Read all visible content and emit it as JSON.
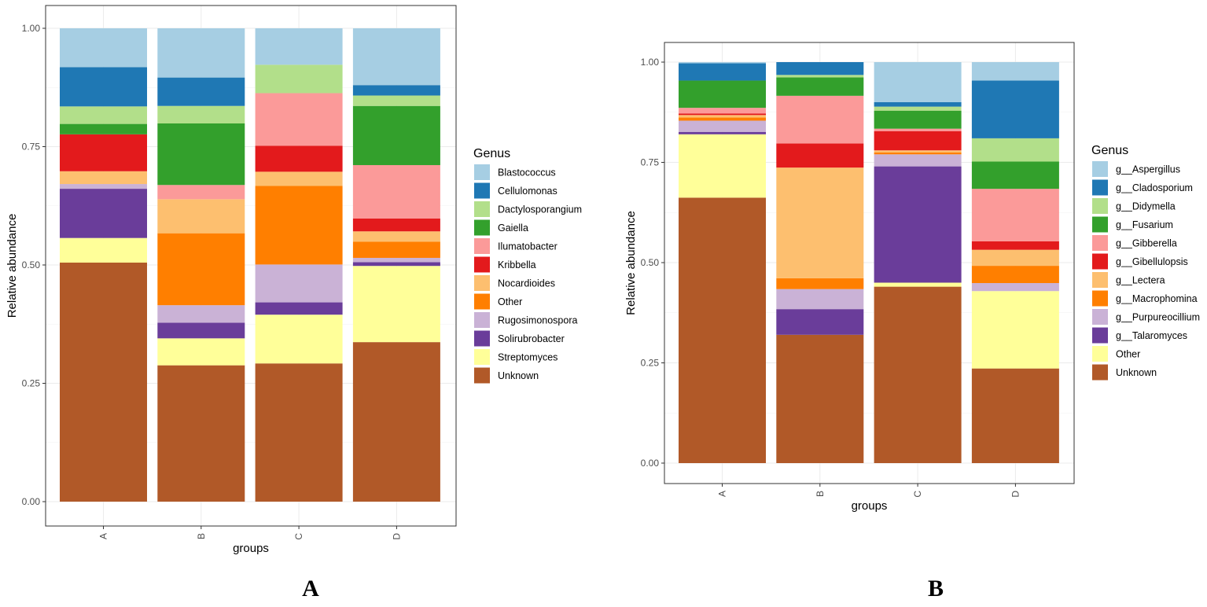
{
  "chart_data": [
    {
      "type": "bar",
      "stacked": true,
      "panel_label": "A",
      "xlabel": "groups",
      "ylabel": "Relative abundance",
      "ylim": [
        0,
        1
      ],
      "yticks": [
        "0.00",
        "0.25",
        "0.50",
        "0.75",
        "1.00"
      ],
      "categories": [
        "A",
        "B",
        "C",
        "D"
      ],
      "legend_title": "Genus",
      "series": [
        {
          "name": "Unknown",
          "color": "#b15928",
          "values": [
            0.505,
            0.288,
            0.292,
            0.337
          ]
        },
        {
          "name": "Streptomyces",
          "color": "#ffff99",
          "values": [
            0.052,
            0.057,
            0.103,
            0.161
          ]
        },
        {
          "name": "Solirubrobacter",
          "color": "#6a3d9a",
          "values": [
            0.104,
            0.033,
            0.026,
            0.008
          ]
        },
        {
          "name": "Rugosimonospora",
          "color": "#cab2d6",
          "values": [
            0.01,
            0.037,
            0.08,
            0.009
          ]
        },
        {
          "name": "Other",
          "color": "#ff7f00",
          "values": [
            0.0,
            0.152,
            0.166,
            0.034
          ]
        },
        {
          "name": "Nocardioides",
          "color": "#fdbf6f",
          "values": [
            0.027,
            0.072,
            0.03,
            0.022
          ]
        },
        {
          "name": "Kribbella",
          "color": "#e31a1c",
          "values": [
            0.078,
            0.0,
            0.055,
            0.027
          ]
        },
        {
          "name": "Ilumatobacter",
          "color": "#fb9a99",
          "values": [
            0.0,
            0.03,
            0.111,
            0.113
          ]
        },
        {
          "name": "Gaiella",
          "color": "#33a02c",
          "values": [
            0.022,
            0.13,
            0.0,
            0.125
          ]
        },
        {
          "name": "Dactylosporangium",
          "color": "#b2df8a",
          "values": [
            0.037,
            0.037,
            0.06,
            0.022
          ]
        },
        {
          "name": "Cellulomonas",
          "color": "#1f78b4",
          "values": [
            0.083,
            0.06,
            0.0,
            0.022
          ]
        },
        {
          "name": "Blastococcus",
          "color": "#a6cee3",
          "values": [
            0.082,
            0.104,
            0.077,
            0.12
          ]
        }
      ]
    },
    {
      "type": "bar",
      "stacked": true,
      "panel_label": "B",
      "xlabel": "groups",
      "ylabel": "Relative abundance",
      "ylim": [
        0,
        1
      ],
      "yticks": [
        "0.00",
        "0.25",
        "0.50",
        "0.75",
        "1.00"
      ],
      "categories": [
        "A",
        "B",
        "C",
        "D"
      ],
      "legend_title": "Genus",
      "series": [
        {
          "name": "Unknown",
          "color": "#b15928",
          "values": [
            0.662,
            0.32,
            0.44,
            0.236
          ]
        },
        {
          "name": "Other",
          "color": "#ffff99",
          "values": [
            0.158,
            0.0,
            0.01,
            0.193
          ]
        },
        {
          "name": "g__Talaromyces",
          "color": "#6a3d9a",
          "values": [
            0.006,
            0.064,
            0.29,
            0.0
          ]
        },
        {
          "name": "g__Purpureocillium",
          "color": "#cab2d6",
          "values": [
            0.028,
            0.05,
            0.03,
            0.02
          ]
        },
        {
          "name": "g__Macrophomina",
          "color": "#ff7f00",
          "values": [
            0.008,
            0.027,
            0.005,
            0.043
          ]
        },
        {
          "name": "g__Lectera",
          "color": "#fdbf6f",
          "values": [
            0.006,
            0.276,
            0.005,
            0.04
          ]
        },
        {
          "name": "g__Gibellulopsis",
          "color": "#e31a1c",
          "values": [
            0.004,
            0.06,
            0.048,
            0.021
          ]
        },
        {
          "name": "g__Gibberella",
          "color": "#fb9a99",
          "values": [
            0.014,
            0.119,
            0.006,
            0.131
          ]
        },
        {
          "name": "g__Fusarium",
          "color": "#33a02c",
          "values": [
            0.068,
            0.046,
            0.045,
            0.068
          ]
        },
        {
          "name": "g__Didymella",
          "color": "#b2df8a",
          "values": [
            0.0,
            0.006,
            0.01,
            0.058
          ]
        },
        {
          "name": "g__Cladosporium",
          "color": "#1f78b4",
          "values": [
            0.043,
            0.032,
            0.011,
            0.144
          ]
        },
        {
          "name": "g__Aspergillus",
          "color": "#a6cee3",
          "values": [
            0.003,
            0.0,
            0.1,
            0.046
          ]
        }
      ]
    }
  ]
}
